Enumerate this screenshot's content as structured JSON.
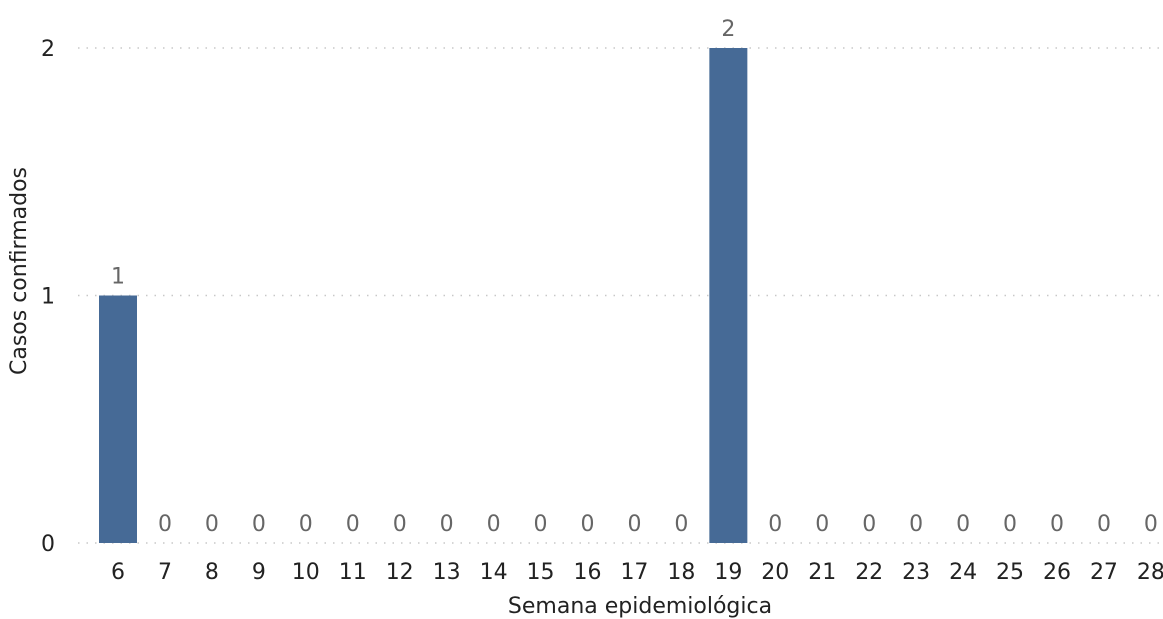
{
  "chart_data": {
    "type": "bar",
    "xlabel": "Semana epidemiológica",
    "ylabel": "Casos confirmados",
    "categories": [
      "6",
      "7",
      "8",
      "9",
      "10",
      "11",
      "12",
      "13",
      "14",
      "15",
      "16",
      "17",
      "18",
      "19",
      "20",
      "21",
      "22",
      "23",
      "24",
      "25",
      "26",
      "27",
      "28"
    ],
    "values": [
      1,
      0,
      0,
      0,
      0,
      0,
      0,
      0,
      0,
      0,
      0,
      0,
      0,
      2,
      0,
      0,
      0,
      0,
      0,
      0,
      0,
      0,
      0
    ],
    "ylim": [
      0,
      2
    ],
    "yticks": [
      0,
      1,
      2
    ],
    "grid": true,
    "data_labels": true,
    "bar_color": "#466A96",
    "label_color": "#666666"
  }
}
